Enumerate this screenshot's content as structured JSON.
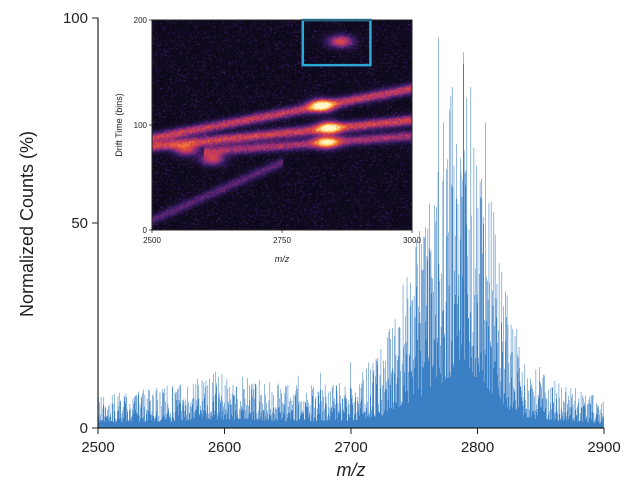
{
  "chart_data": [
    {
      "type": "bar",
      "subtype": "mass-spectrum",
      "title": "",
      "xlabel": "m/z",
      "ylabel": "Normalized Counts (%)",
      "xlim": [
        2500,
        2900
      ],
      "ylim": [
        0,
        100
      ],
      "x_ticks": [
        "2500",
        "2600",
        "2700",
        "2800",
        "2900"
      ],
      "y_ticks": [
        "0",
        "50",
        "100"
      ],
      "grid": false,
      "color": "#3b7fc4",
      "series": [
        {
          "values_description_x": [
            2500,
            2550,
            2590,
            2650,
            2700,
            2725,
            2740,
            2760,
            2775,
            2785,
            2790,
            2795,
            2800,
            2810,
            2825,
            2840,
            2860,
            2880,
            2900
          ],
          "envelope": [
            8,
            10,
            14,
            11,
            11,
            20,
            36,
            55,
            78,
            90,
            93,
            88,
            78,
            60,
            30,
            16,
            12,
            10,
            7
          ]
        }
      ]
    },
    {
      "type": "heatmap",
      "subtype": "drift-time-vs-mz",
      "title": "",
      "xlabel": "m/z",
      "ylabel": "Drift Time (bins)",
      "xlim": [
        2500,
        3000
      ],
      "ylim": [
        0,
        200
      ],
      "x_ticks": [
        "2500",
        "2750",
        "3000"
      ],
      "y_ticks": [
        "0",
        "100",
        "200"
      ],
      "colormap": [
        "#0a0714",
        "#3a1e6a",
        "#a2317a",
        "#e4493a",
        "#ffb13a",
        "#fff7c8"
      ],
      "highlight_box": {
        "x": [
          2790,
          2920
        ],
        "y": [
          157,
          200
        ],
        "color": "#2aa8d8"
      },
      "hotspots": [
        {
          "x": 2862,
          "y": 180,
          "intensity": 0.55
        },
        {
          "x": 2825,
          "y": 119,
          "intensity": 1.0
        },
        {
          "x": 2840,
          "y": 98,
          "intensity": 0.85
        },
        {
          "x": 2835,
          "y": 84,
          "intensity": 0.8
        },
        {
          "x": 2565,
          "y": 77,
          "intensity": 0.5
        },
        {
          "x": 2615,
          "y": 68,
          "intensity": 0.5
        }
      ],
      "bands": [
        {
          "x_start": 2500,
          "x_end": 3000,
          "y_start": 88,
          "y_end": 135,
          "intensity": 0.55
        },
        {
          "x_start": 2500,
          "x_end": 3000,
          "y_start": 80,
          "y_end": 105,
          "intensity": 0.6
        },
        {
          "x_start": 2600,
          "x_end": 3000,
          "y_start": 75,
          "y_end": 90,
          "intensity": 0.45
        },
        {
          "x_start": 2500,
          "x_end": 2750,
          "y_start": 10,
          "y_end": 65,
          "intensity": 0.25
        }
      ]
    }
  ]
}
